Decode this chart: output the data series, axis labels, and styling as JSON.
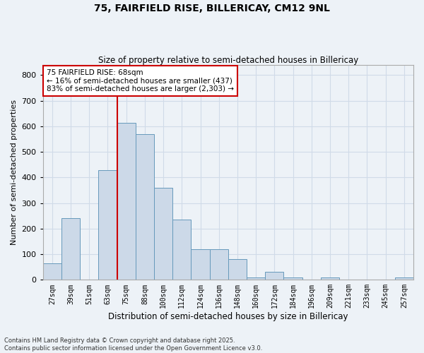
{
  "title1": "75, FAIRFIELD RISE, BILLERICAY, CM12 9NL",
  "title2": "Size of property relative to semi-detached houses in Billericay",
  "xlabel": "Distribution of semi-detached houses by size in Billericay",
  "ylabel": "Number of semi-detached properties",
  "bin_labels": [
    "27sqm",
    "39sqm",
    "51sqm",
    "63sqm",
    "75sqm",
    "88sqm",
    "100sqm",
    "112sqm",
    "124sqm",
    "136sqm",
    "148sqm",
    "160sqm",
    "172sqm",
    "184sqm",
    "196sqm",
    "209sqm",
    "221sqm",
    "233sqm",
    "245sqm",
    "257sqm"
  ],
  "bar_heights": [
    65,
    240,
    0,
    430,
    615,
    570,
    360,
    235,
    120,
    120,
    80,
    10,
    30,
    10,
    0,
    10,
    0,
    0,
    0,
    10
  ],
  "bar_color": "#ccd9e8",
  "bar_edge_color": "#6699bb",
  "vline_x": 3.5,
  "vline_color": "#cc0000",
  "annotation_text": "75 FAIRFIELD RISE: 68sqm\n← 16% of semi-detached houses are smaller (437)\n83% of semi-detached houses are larger (2,303) →",
  "annotation_box_color": "#ffffff",
  "annotation_box_edge": "#cc0000",
  "footer_text": "Contains HM Land Registry data © Crown copyright and database right 2025.\nContains public sector information licensed under the Open Government Licence v3.0.",
  "ylim": [
    0,
    840
  ],
  "yticks": [
    0,
    100,
    200,
    300,
    400,
    500,
    600,
    700,
    800
  ],
  "background_color": "#edf2f7",
  "grid_color": "#d0dbe8"
}
